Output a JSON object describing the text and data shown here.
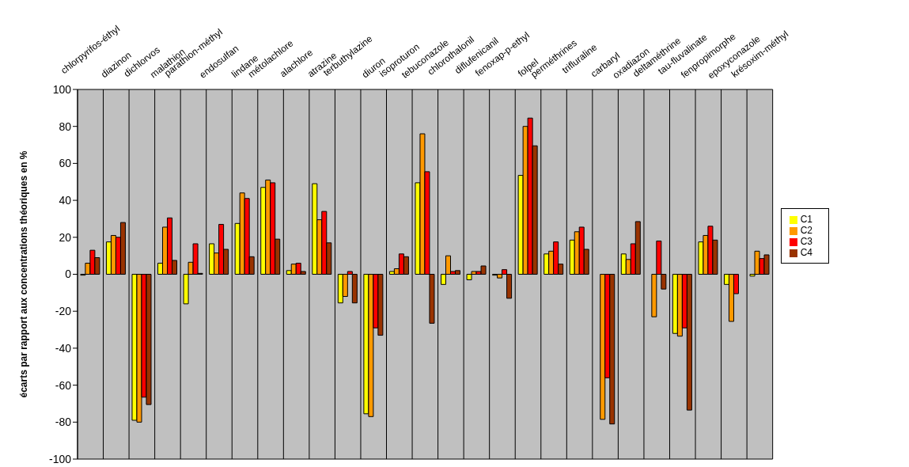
{
  "chart_data": {
    "type": "bar",
    "ylabel": "écarts par rapport aux concentrations théoriques en %",
    "categories": [
      "chlorpyrifos-éthyl",
      "diazinon",
      "dichlorvos",
      "malathion",
      "parathion-méthyl",
      "endosulfan",
      "lindane",
      "métolachlore",
      "alachlore",
      "atrazine",
      "terbuthylazine",
      "diuron",
      "isoproturon",
      "tebuconazole",
      "chlorothalonil",
      "diflufenicanil",
      "fenoxap-p-ethyl",
      "folpel",
      "perméthrines",
      "trifluraline",
      "carbaryl",
      "oxadiazon",
      "deltaméthrine",
      "tau-fluvalinate",
      "fenpropimorphe",
      "epoxyconazole",
      "krésoxim-méthyl"
    ],
    "series": [
      {
        "name": "C1",
        "color": "#ffff00",
        "values": [
          -0.5,
          17.5,
          -79,
          6,
          -16,
          16.5,
          27.5,
          47,
          2,
          49,
          -15.5,
          -75.5,
          1.5,
          49.5,
          -5.5,
          -3,
          -0.5,
          53.5,
          11,
          18.5,
          null,
          11,
          null,
          -32,
          17.5,
          -5.5,
          -1
        ]
      },
      {
        "name": "C2",
        "color": "#ff9900",
        "values": [
          6,
          21,
          -80,
          25.5,
          6.5,
          11.5,
          44,
          51,
          5.5,
          29.5,
          -12,
          -77,
          3,
          76,
          10,
          1.5,
          -2,
          80,
          12.5,
          23,
          -78.5,
          8,
          -23,
          -33.5,
          21,
          -25.5,
          12.5
        ]
      },
      {
        "name": "C3",
        "color": "#ff0000",
        "values": [
          13,
          20,
          -66.5,
          30.5,
          16.5,
          27,
          41,
          49.5,
          6,
          34,
          1.5,
          -29,
          11,
          55.5,
          1.5,
          1.5,
          2.5,
          84.5,
          17.5,
          25.5,
          -56,
          16.5,
          18,
          -29,
          26,
          -10.5,
          8.5
        ]
      },
      {
        "name": "C4",
        "color": "#993300",
        "values": [
          9,
          28,
          -70.5,
          7.5,
          0.5,
          13.5,
          9.5,
          19,
          1.5,
          17,
          -15.5,
          -33,
          9.5,
          -26.5,
          2,
          4.5,
          -13,
          69.5,
          5.5,
          13.5,
          -81,
          28.5,
          -8,
          -73.5,
          18.5,
          null,
          10.5
        ]
      }
    ],
    "ylim": [
      -100,
      100
    ],
    "yticks": [
      -100,
      -80,
      -60,
      -40,
      -20,
      0,
      20,
      40,
      60,
      80,
      100
    ],
    "grid": true,
    "legend": "right"
  }
}
